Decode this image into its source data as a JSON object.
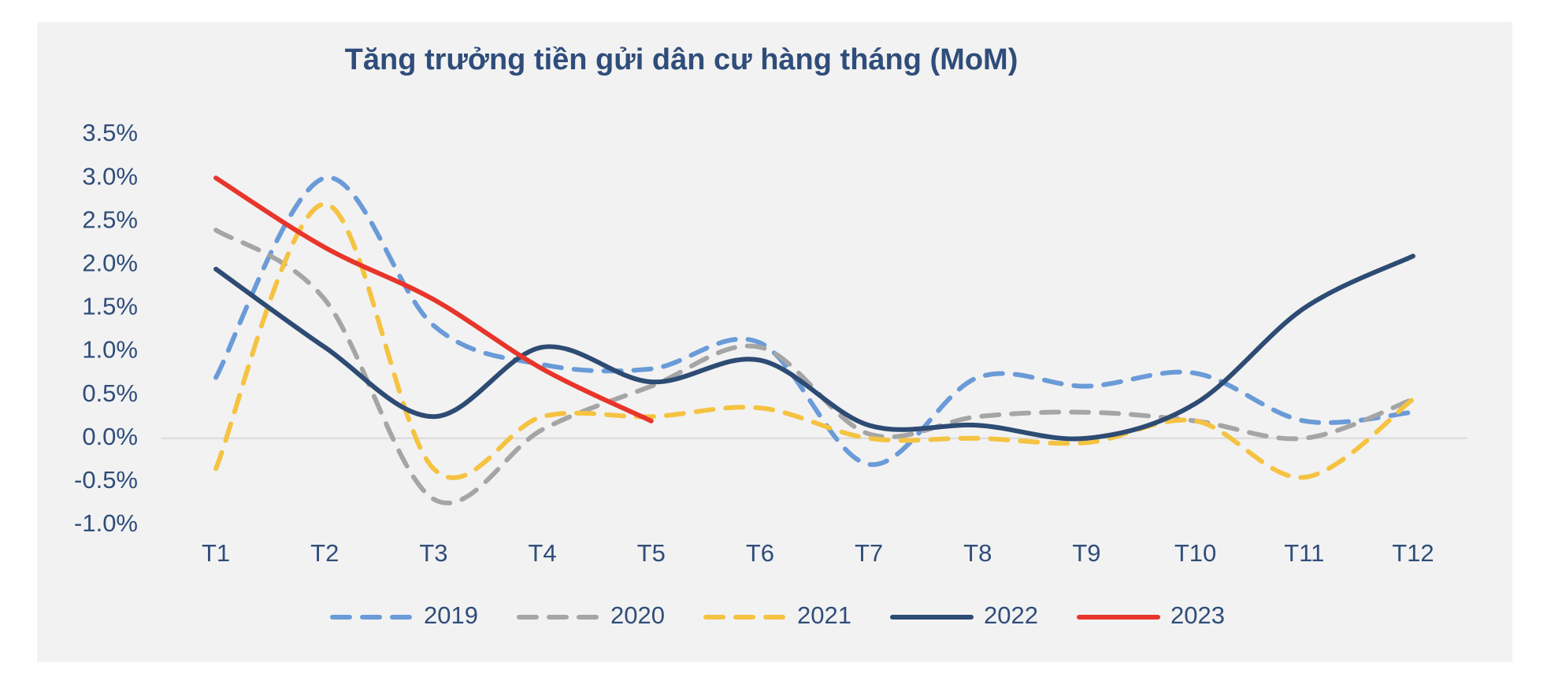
{
  "chart_data": {
    "type": "line",
    "title": "Tăng trưởng tiền gửi dân cư hàng tháng (MoM)",
    "categories": [
      "T1",
      "T2",
      "T3",
      "T4",
      "T5",
      "T6",
      "T7",
      "T8",
      "T9",
      "T10",
      "T11",
      "T12"
    ],
    "series": [
      {
        "name": "2019",
        "color": "#6a9bd8",
        "dashed": true,
        "values": [
          0.7,
          3.0,
          1.3,
          0.85,
          0.8,
          1.1,
          -0.3,
          0.7,
          0.6,
          0.75,
          0.2,
          0.3
        ]
      },
      {
        "name": "2020",
        "color": "#a5a5a5",
        "dashed": true,
        "values": [
          2.4,
          1.6,
          -0.7,
          0.1,
          0.6,
          1.05,
          0.05,
          0.25,
          0.3,
          0.2,
          0.0,
          0.45
        ]
      },
      {
        "name": "2021",
        "color": "#f5c342",
        "dashed": true,
        "values": [
          -0.35,
          2.7,
          -0.35,
          0.25,
          0.25,
          0.35,
          0.0,
          0.0,
          -0.05,
          0.2,
          -0.45,
          0.45
        ]
      },
      {
        "name": "2022",
        "color": "#2d4b73",
        "dashed": false,
        "values": [
          1.95,
          1.05,
          0.25,
          1.05,
          0.65,
          0.9,
          0.15,
          0.15,
          0.0,
          0.4,
          1.5,
          2.1
        ]
      },
      {
        "name": "2023",
        "color": "#e8352b",
        "dashed": false,
        "values": [
          3.0,
          2.2,
          1.6,
          0.8,
          0.2,
          null,
          null,
          null,
          null,
          null,
          null,
          null
        ]
      }
    ],
    "ylim": [
      -1.0,
      3.5
    ],
    "yticks": [
      {
        "value": -1.0,
        "label": "-1.0%"
      },
      {
        "value": -0.5,
        "label": "-0.5%"
      },
      {
        "value": 0.0,
        "label": "0.0%"
      },
      {
        "value": 0.5,
        "label": "0.5%"
      },
      {
        "value": 1.0,
        "label": "1.0%"
      },
      {
        "value": 1.5,
        "label": "1.5%"
      },
      {
        "value": 2.0,
        "label": "2.0%"
      },
      {
        "value": 2.5,
        "label": "2.5%"
      },
      {
        "value": 3.0,
        "label": "3.0%"
      },
      {
        "value": 3.5,
        "label": "3.5%"
      }
    ],
    "grid": false,
    "smooth": true,
    "legend": "bottom"
  }
}
